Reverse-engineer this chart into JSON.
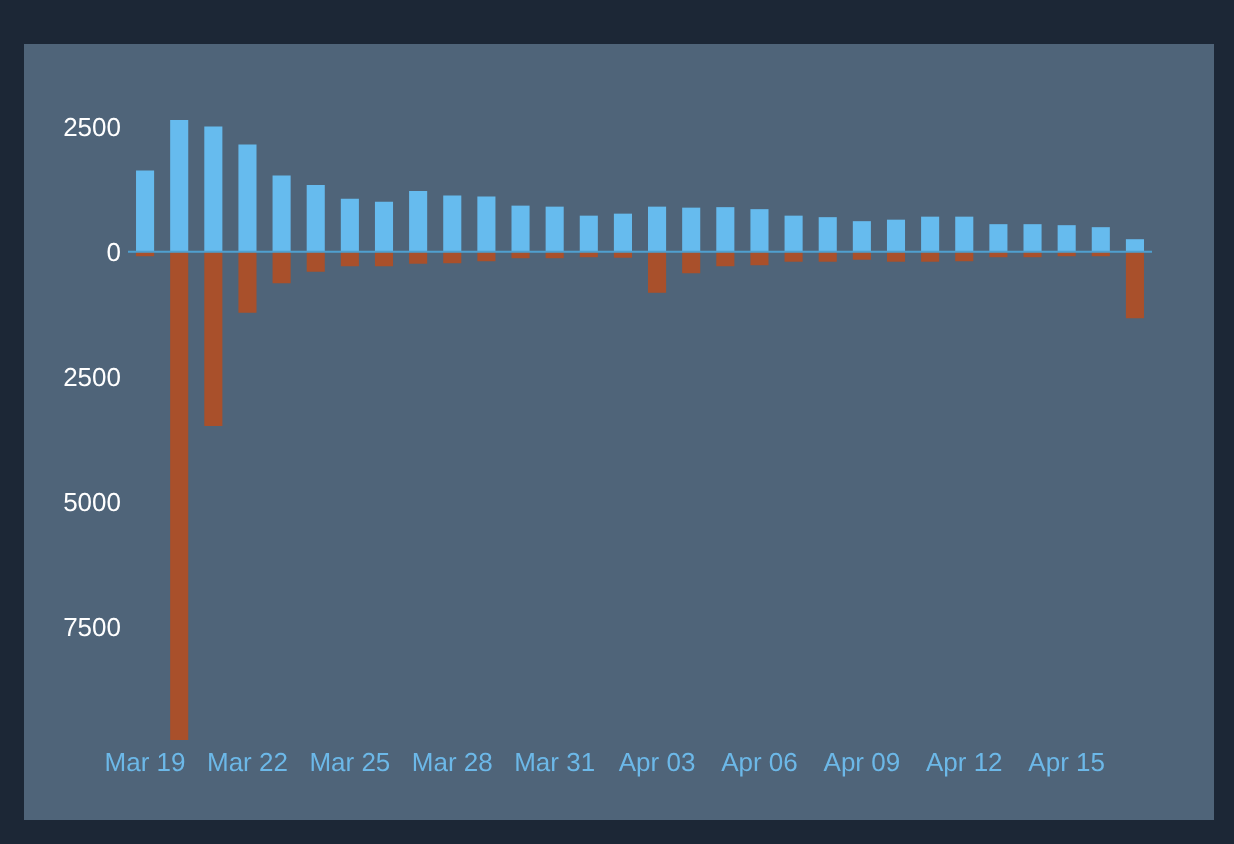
{
  "chart_data": {
    "type": "bar",
    "categories": [
      "Mar 19",
      null,
      null,
      "Mar 22",
      null,
      null,
      "Mar 25",
      null,
      null,
      "Mar 28",
      null,
      null,
      "Mar 31",
      null,
      null,
      "Apr 03",
      null,
      null,
      "Apr 06",
      null,
      null,
      "Apr 09",
      null,
      null,
      "Apr 12",
      null,
      null,
      "Apr 15",
      null,
      null
    ],
    "series": [
      {
        "color": "#66bbee",
        "values": [
          1620,
          2630,
          2500,
          2140,
          1520,
          1330,
          1060,
          1000,
          1210,
          1120,
          1100,
          920,
          900,
          720,
          760,
          900,
          880,
          890,
          850,
          720,
          690,
          610,
          640,
          700,
          700,
          550,
          550,
          530,
          490,
          250
        ]
      },
      {
        "color": "#a9502b",
        "values": [
          -90,
          -9750,
          -3480,
          -1220,
          -630,
          -400,
          -290,
          -290,
          -240,
          -230,
          -190,
          -130,
          -130,
          -110,
          -120,
          -820,
          -430,
          -290,
          -270,
          -200,
          -200,
          -160,
          -200,
          -200,
          -190,
          -110,
          -110,
          -90,
          -90,
          -1330
        ]
      }
    ],
    "stacked": true,
    "ylim": [
      -9750,
      2630
    ],
    "yticks": [
      {
        "value": -7500,
        "label": "7500"
      },
      {
        "value": -5000,
        "label": "5000"
      },
      {
        "value": -2500,
        "label": "2500"
      },
      0,
      2500
    ],
    "grid": false,
    "legend": false,
    "ref_lines": [
      {
        "axis": "y",
        "value": 0,
        "color": "#4fa0d0"
      }
    ]
  }
}
